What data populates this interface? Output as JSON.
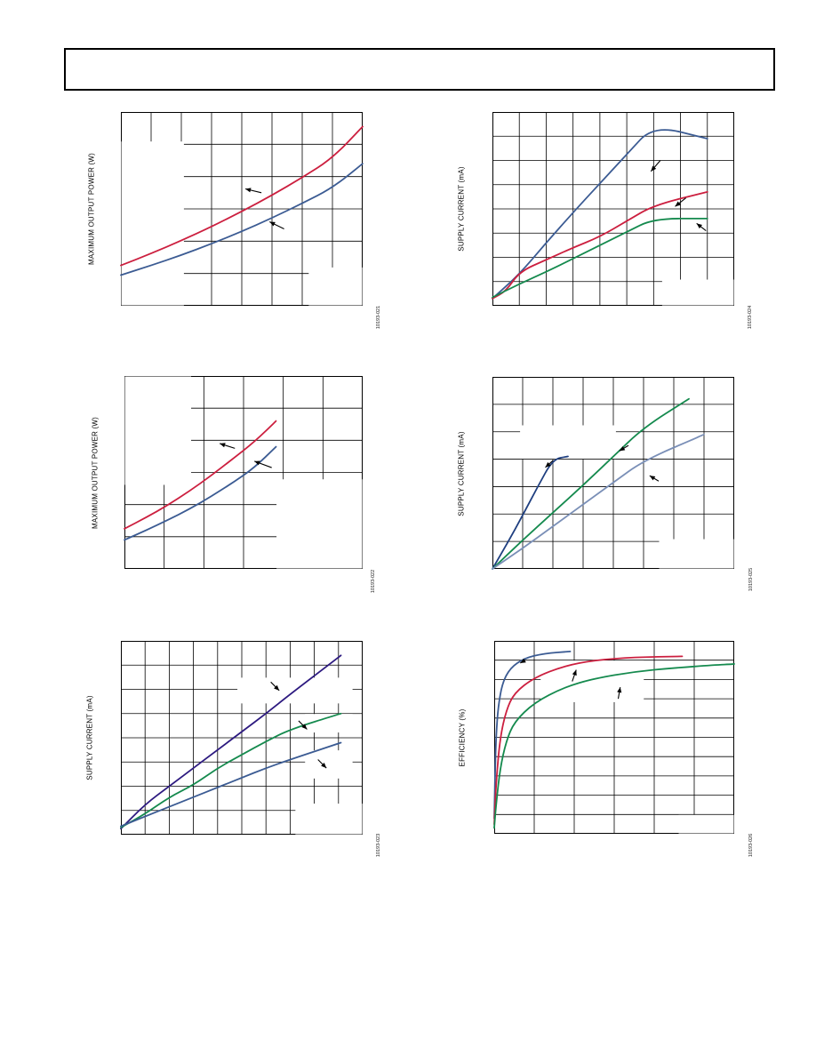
{
  "page": {
    "header_text": ""
  },
  "chart_data": [
    {
      "id": "c1",
      "type": "line",
      "ylabel": "MAXIMUM OUTPUT POWER (W)",
      "fig_id": "10193-021",
      "xlim": [
        0,
        8
      ],
      "ylim": [
        0,
        6
      ],
      "xgrid": 8,
      "ygrid": 6,
      "grid": true,
      "legend_boxes": [
        [
          0,
          0,
          2.1,
          5.1
        ],
        [
          6.2,
          0,
          8,
          1.2
        ]
      ],
      "series": [
        {
          "color": "#cc1f3f",
          "points": [
            [
              0,
              1.25
            ],
            [
              1,
              1.62
            ],
            [
              2,
              2.02
            ],
            [
              3,
              2.45
            ],
            [
              4,
              2.92
            ],
            [
              5,
              3.42
            ],
            [
              6,
              3.97
            ],
            [
              7,
              4.57
            ],
            [
              8,
              5.55
            ]
          ]
        },
        {
          "color": "#3b5b93",
          "points": [
            [
              0,
              0.95
            ],
            [
              1,
              1.25
            ],
            [
              2,
              1.57
            ],
            [
              3,
              1.92
            ],
            [
              4,
              2.3
            ],
            [
              5,
              2.72
            ],
            [
              6,
              3.17
            ],
            [
              7,
              3.65
            ],
            [
              8,
              4.4
            ]
          ]
        }
      ],
      "arrows": [
        [
          4.65,
          3.5,
          4.12,
          3.62
        ],
        [
          5.4,
          2.38,
          4.92,
          2.6
        ]
      ]
    },
    {
      "id": "c2",
      "type": "line",
      "ylabel": "SUPPLY CURRENT (mA)",
      "fig_id": "10193-024",
      "xlim": [
        0,
        9
      ],
      "ylim": [
        0,
        8
      ],
      "xgrid": 9,
      "ygrid": 8,
      "grid": true,
      "legend_boxes": [
        [
          6.3,
          0,
          9,
          1.1
        ]
      ],
      "series": [
        {
          "color": "#3b5b93",
          "points": [
            [
              0,
              0.3
            ],
            [
              1,
              1.3
            ],
            [
              2,
              2.6
            ],
            [
              3,
              3.85
            ],
            [
              4,
              5.05
            ],
            [
              5,
              6.25
            ],
            [
              6,
              7.45
            ],
            [
              8,
              6.9
            ]
          ]
        },
        {
          "color": "#cc1f3f",
          "points": [
            [
              0,
              0.3
            ],
            [
              0.5,
              0.6
            ],
            [
              1,
              1.4
            ],
            [
              2,
              1.9
            ],
            [
              3,
              2.4
            ],
            [
              4,
              2.85
            ],
            [
              5,
              3.5
            ],
            [
              6,
              4.15
            ],
            [
              8,
              4.7
            ]
          ]
        },
        {
          "color": "#158a4e",
          "points": [
            [
              0,
              0.35
            ],
            [
              1,
              0.9
            ],
            [
              2,
              1.4
            ],
            [
              3,
              1.95
            ],
            [
              4,
              2.5
            ],
            [
              5,
              3.05
            ],
            [
              6,
              3.6
            ],
            [
              8,
              3.6
            ]
          ]
        }
      ],
      "arrows": [
        [
          6.25,
          6.0,
          5.9,
          5.55
        ],
        [
          7.2,
          4.45,
          6.8,
          4.1
        ],
        [
          7.95,
          3.1,
          7.6,
          3.4
        ]
      ]
    },
    {
      "id": "c3",
      "type": "line",
      "ylabel": "MAXIMUM OUTPUT POWER (W)",
      "fig_id": "10193-022",
      "xlim": [
        0,
        5.5
      ],
      "ylim": [
        0,
        6
      ],
      "xgrid": 6,
      "ygrid": 6,
      "grid": true,
      "legend_boxes": [
        [
          0,
          2.6,
          1.55,
          6
        ],
        [
          3.5,
          0,
          5.5,
          2.8
        ]
      ],
      "series": [
        {
          "color": "#cc1f3f",
          "points": [
            [
              0,
              1.25
            ],
            [
              0.5,
              1.6
            ],
            [
              1,
              1.98
            ],
            [
              1.5,
              2.42
            ],
            [
              2,
              2.9
            ],
            [
              2.5,
              3.42
            ],
            [
              3,
              3.95
            ],
            [
              3.5,
              4.6
            ]
          ]
        },
        {
          "color": "#3b5b93",
          "points": [
            [
              0,
              0.9
            ],
            [
              0.5,
              1.2
            ],
            [
              1,
              1.52
            ],
            [
              1.5,
              1.86
            ],
            [
              2,
              2.25
            ],
            [
              2.5,
              2.68
            ],
            [
              3,
              3.15
            ],
            [
              3.5,
              3.8
            ]
          ]
        }
      ],
      "arrows": [
        [
          2.55,
          3.75,
          2.2,
          3.9
        ],
        [
          3.4,
          3.15,
          3.0,
          3.35
        ]
      ]
    },
    {
      "id": "c4",
      "type": "line",
      "ylabel": "SUPPLY CURRENT (mA)",
      "fig_id": "10193-025",
      "xlim": [
        0,
        8
      ],
      "ylim": [
        0,
        7
      ],
      "xgrid": 8,
      "ygrid": 7,
      "grid": true,
      "legend_boxes": [
        [
          0.9,
          4.0,
          4.1,
          5.25
        ],
        [
          5.5,
          0,
          8,
          1.1
        ]
      ],
      "series": [
        {
          "color": "#1f3f80",
          "points": [
            [
              0,
              0
            ],
            [
              0.5,
              0.95
            ],
            [
              1,
              1.95
            ],
            [
              1.5,
              3.0
            ],
            [
              2,
              4.0
            ],
            [
              2.5,
              4.1
            ]
          ]
        },
        {
          "color": "#158a4e",
          "points": [
            [
              0,
              0
            ],
            [
              1,
              1.05
            ],
            [
              2,
              2.05
            ],
            [
              3,
              3.05
            ],
            [
              4,
              4.1
            ],
            [
              5,
              5.15
            ],
            [
              6.5,
              6.2
            ]
          ]
        },
        {
          "color": "#7a8fb7",
          "points": [
            [
              0,
              0
            ],
            [
              1,
              0.75
            ],
            [
              2,
              1.55
            ],
            [
              3,
              2.35
            ],
            [
              4,
              3.15
            ],
            [
              5,
              3.95
            ],
            [
              7,
              4.9
            ]
          ]
        }
      ],
      "arrows": [
        [
          2.0,
          3.95,
          1.75,
          3.7
        ],
        [
          4.5,
          4.5,
          4.2,
          4.3
        ],
        [
          5.5,
          3.2,
          5.2,
          3.4
        ]
      ]
    },
    {
      "id": "c5",
      "type": "line",
      "ylabel": "SUPPLY CURRENT (mA)",
      "fig_id": "10193-023",
      "xlim": [
        0,
        10
      ],
      "ylim": [
        0,
        8
      ],
      "xgrid": 10,
      "ygrid": 8,
      "grid": true,
      "legend_boxes": [
        [
          4.8,
          5.4,
          9.6,
          6.5
        ],
        [
          7.6,
          4.2,
          9.6,
          5.0
        ],
        [
          7.6,
          2.3,
          9.6,
          3.5
        ],
        [
          7.2,
          0,
          10,
          1.3
        ]
      ],
      "series": [
        {
          "color": "#2d1a80",
          "points": [
            [
              0,
              0.25
            ],
            [
              1,
              1.25
            ],
            [
              2,
              2.0
            ],
            [
              3,
              2.75
            ],
            [
              4,
              3.5
            ],
            [
              5,
              4.25
            ],
            [
              6,
              5.0
            ],
            [
              7,
              5.8
            ],
            [
              9.1,
              7.4
            ]
          ]
        },
        {
          "color": "#158a4e",
          "points": [
            [
              0,
              0.3
            ],
            [
              1,
              0.85
            ],
            [
              2,
              1.55
            ],
            [
              3,
              2.05
            ],
            [
              4,
              2.75
            ],
            [
              5,
              3.3
            ],
            [
              6,
              3.85
            ],
            [
              7,
              4.35
            ],
            [
              9.1,
              5.0
            ]
          ]
        },
        {
          "color": "#3b5b93",
          "points": [
            [
              0,
              0.35
            ],
            [
              1,
              0.75
            ],
            [
              2,
              1.15
            ],
            [
              3,
              1.55
            ],
            [
              4,
              1.95
            ],
            [
              5,
              2.35
            ],
            [
              6,
              2.75
            ],
            [
              7,
              3.1
            ],
            [
              9.1,
              3.8
            ]
          ]
        }
      ],
      "arrows": [
        [
          6.2,
          6.3,
          6.55,
          5.95
        ],
        [
          7.35,
          4.7,
          7.7,
          4.35
        ],
        [
          8.15,
          3.1,
          8.5,
          2.75
        ]
      ]
    },
    {
      "id": "c6",
      "type": "line",
      "ylabel": "EFFICIENCY (%)",
      "fig_id": "10193-026",
      "xlim": [
        0,
        12
      ],
      "ylim": [
        0,
        100
      ],
      "xgrid": 6,
      "ygrid": 10,
      "grid": true,
      "legend_boxes": [
        [
          2.3,
          68,
          7.5,
          90
        ],
        [
          9.2,
          0,
          12,
          10
        ]
      ],
      "series": [
        {
          "color": "#3b5b93",
          "points": [
            [
              0,
              8
            ],
            [
              0.05,
              35
            ],
            [
              0.1,
              52
            ],
            [
              0.2,
              66
            ],
            [
              0.4,
              78
            ],
            [
              0.8,
              86
            ],
            [
              1.5,
              91
            ],
            [
              2.5,
              93.5
            ],
            [
              3.8,
              94.5
            ]
          ]
        },
        {
          "color": "#cc1f3f",
          "points": [
            [
              0,
              5
            ],
            [
              0.1,
              28
            ],
            [
              0.3,
              50
            ],
            [
              0.6,
              64
            ],
            [
              1,
              73
            ],
            [
              2,
              81
            ],
            [
              3.5,
              87
            ],
            [
              5,
              90
            ],
            [
              7,
              91.5
            ],
            [
              9.4,
              92
            ]
          ]
        },
        {
          "color": "#158a4e",
          "points": [
            [
              0,
              3
            ],
            [
              0.1,
              16
            ],
            [
              0.3,
              34
            ],
            [
              0.6,
              48
            ],
            [
              1,
              58
            ],
            [
              2,
              68
            ],
            [
              3.5,
              76
            ],
            [
              5,
              80.5
            ],
            [
              7,
              84
            ],
            [
              9,
              86
            ],
            [
              11,
              87.5
            ],
            [
              12,
              88
            ]
          ]
        }
      ],
      "arrows": [
        [
          1.55,
          90,
          1.3,
          88.5
        ],
        [
          3.9,
          79,
          4.1,
          85
        ],
        [
          6.2,
          70,
          6.3,
          76
        ]
      ]
    }
  ]
}
